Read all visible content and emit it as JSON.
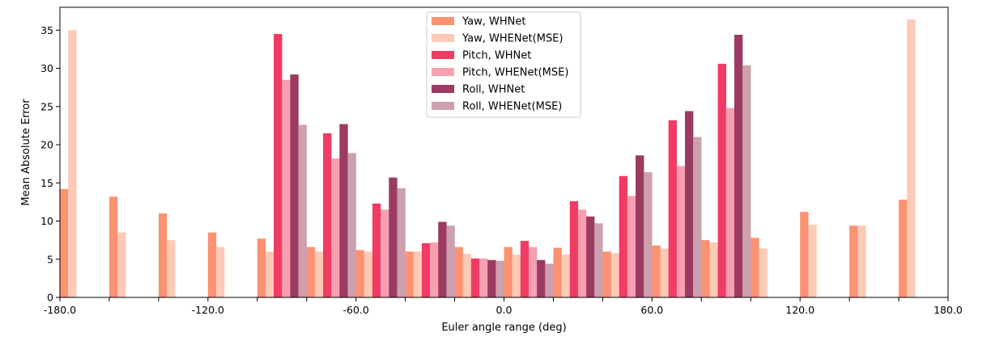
{
  "chart_data": {
    "type": "bar",
    "xlabel": "Euler angle range (deg)",
    "ylabel": "Mean Absolute Error",
    "xlim": [
      -180,
      180
    ],
    "ylim": [
      0,
      38
    ],
    "xticks": [
      "-180.0",
      "-120.0",
      "-60.0",
      "0.0",
      "60.0",
      "120.0",
      "180.0"
    ],
    "yticks": [
      "0",
      "5",
      "10",
      "15",
      "20",
      "25",
      "30",
      "35"
    ],
    "bins": [
      -180,
      -160,
      -140,
      -120,
      -100,
      -80,
      -60,
      -40,
      -20,
      0,
      20,
      40,
      60,
      80,
      100,
      120,
      140,
      160
    ],
    "bin_width": 20,
    "legend_position": "top-center",
    "series": [
      {
        "name": "Yaw, WHNet",
        "color": "#fc9272",
        "values": [
          14.2,
          13.2,
          11.0,
          8.5,
          7.7,
          6.6,
          6.2,
          6.0,
          6.6,
          6.6,
          6.5,
          6.0,
          6.8,
          7.5,
          7.8,
          11.2,
          9.4,
          12.8
        ]
      },
      {
        "name": "Yaw, WHENet(MSE)",
        "color": "#fdcab5",
        "values": [
          35.0,
          8.5,
          7.5,
          6.6,
          6.0,
          6.0,
          6.0,
          6.0,
          5.7,
          5.6,
          5.6,
          5.8,
          6.4,
          7.2,
          6.4,
          9.5,
          9.4,
          36.4
        ]
      },
      {
        "name": "Pitch, WHNet",
        "color": "#f03b64",
        "values": [
          null,
          null,
          null,
          null,
          34.5,
          21.5,
          12.3,
          7.1,
          5.1,
          7.4,
          12.6,
          15.9,
          23.2,
          30.6,
          null,
          null,
          null,
          null
        ]
      },
      {
        "name": "Pitch, WHENet(MSE)",
        "color": "#f8a0b0",
        "values": [
          null,
          null,
          null,
          null,
          28.5,
          18.2,
          11.5,
          7.2,
          5.1,
          6.6,
          11.5,
          13.3,
          17.2,
          24.8,
          null,
          null,
          null,
          null
        ]
      },
      {
        "name": "Roll, WHNet",
        "color": "#9b3b61",
        "values": [
          null,
          null,
          null,
          null,
          29.2,
          22.7,
          15.7,
          9.9,
          4.9,
          4.9,
          10.6,
          18.6,
          24.4,
          34.4,
          null,
          null,
          null,
          null
        ]
      },
      {
        "name": "Roll, WHENet(MSE)",
        "color": "#cca0ae",
        "values": [
          null,
          null,
          null,
          null,
          22.6,
          18.9,
          14.3,
          9.4,
          4.8,
          4.4,
          9.7,
          16.4,
          21.0,
          30.4,
          null,
          null,
          null,
          null
        ]
      }
    ]
  }
}
